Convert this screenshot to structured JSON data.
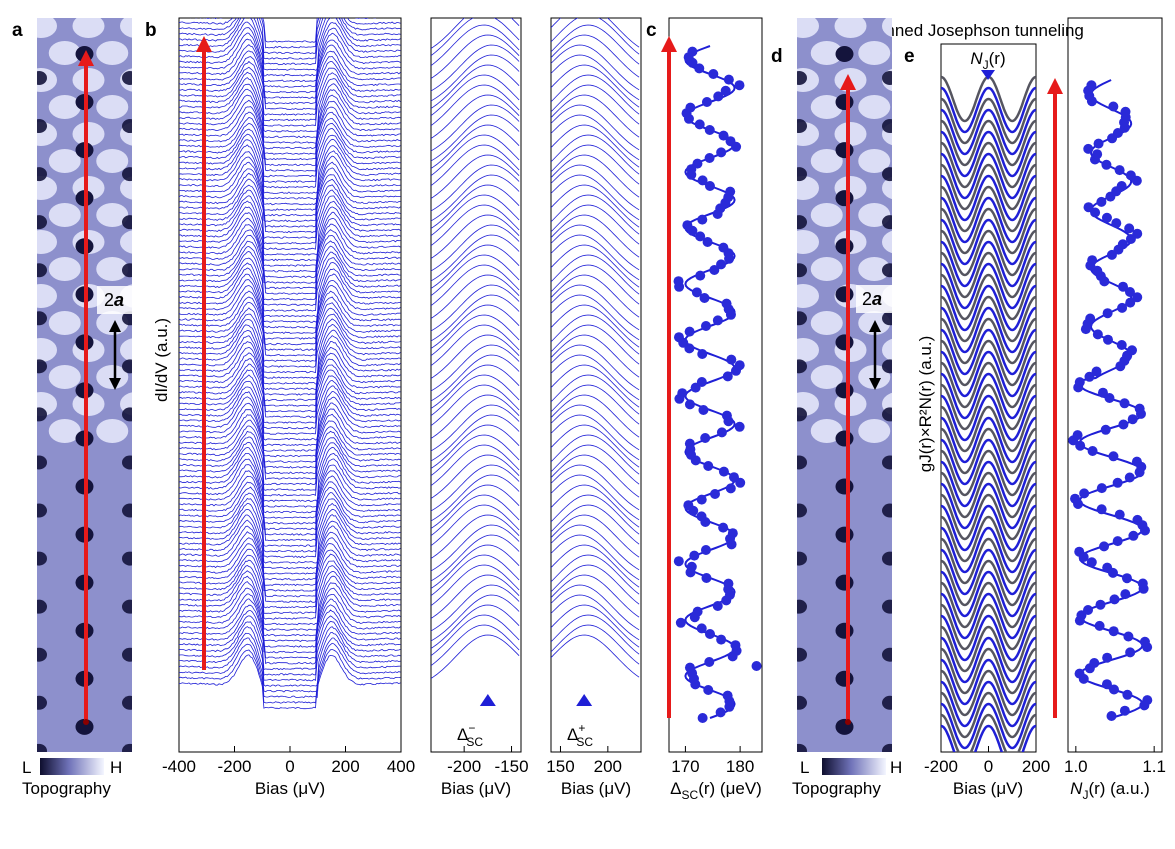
{
  "figure_title": "Scanned Josephson tunneling",
  "panel_labels": {
    "a": "a",
    "b": "b",
    "c": "c",
    "d": "d",
    "e": "e"
  },
  "topography": {
    "scale_low": "L",
    "scale_high": "H",
    "label": "Topography",
    "period_label": "2",
    "period_symbol": "a"
  },
  "chart_data": [
    {
      "id": "b-main",
      "type": "line",
      "description_role": "stacked spectra",
      "xlabel": "Bias (μV)",
      "ylabel": "dI/dV (a.u.)",
      "xlim": [
        -400,
        400
      ],
      "xticks": [
        -400,
        -200,
        0,
        200,
        400
      ],
      "n_curves": 120,
      "gap_mean_uV": 175,
      "gap_amplitude_uV": 5
    },
    {
      "id": "b-neg-zoom",
      "type": "line",
      "xlabel": "Bias (μV)",
      "xlim": [
        -235,
        -140
      ],
      "xticks": [
        -200,
        -150
      ],
      "marker_label": "Δ",
      "marker_sup": "−",
      "marker_sub": "SC",
      "marker_x": -175
    },
    {
      "id": "b-pos-zoom",
      "type": "line",
      "xlabel": "Bias (μV)",
      "xlim": [
        140,
        235
      ],
      "xticks": [
        150,
        200
      ],
      "marker_label": "Δ",
      "marker_sup": "+",
      "marker_sub": "SC",
      "marker_x": 175
    },
    {
      "id": "c-gap",
      "type": "scatter",
      "xlabel_main": "Δ",
      "xlabel_sub": "SC",
      "xlabel_rest": "(r) (μeV)",
      "xlim": [
        167,
        184
      ],
      "xticks": [
        170,
        180
      ],
      "fit_period_per_2a": 1,
      "fit_mean": 174.5,
      "fit_amplitude": 4.5,
      "n_points": 120,
      "outlier_x": 183
    },
    {
      "id": "e-josephson",
      "type": "line",
      "xlabel": "Bias (μV)",
      "ylabel": "gJ(r)×R²N(r) (a.u.)",
      "xlim": [
        -200,
        200
      ],
      "xticks": [
        -200,
        0,
        200
      ],
      "marker_label": "N",
      "marker_sub": "J",
      "marker_rest": "(r)",
      "n_curves": 60
    },
    {
      "id": "e-NJ",
      "type": "scatter",
      "xlabel_main": "N",
      "xlabel_sub": "J",
      "xlabel_rest": "(r) (a.u.)",
      "xlim": [
        0.99,
        1.11
      ],
      "xticks": [
        "1.0",
        "1.1"
      ],
      "xtick_values": [
        1.0,
        1.1
      ],
      "fit_mean": 1.045,
      "fit_amplitude": 0.04,
      "n_points": 120
    }
  ],
  "colors": {
    "curve": "#1f1fd6",
    "arrow": "#e61a1a",
    "marker_fill": "#2a2ad8",
    "topo_dark": "#14143c",
    "topo_light": "#f4f6ff",
    "gray_curve": "#555560"
  }
}
